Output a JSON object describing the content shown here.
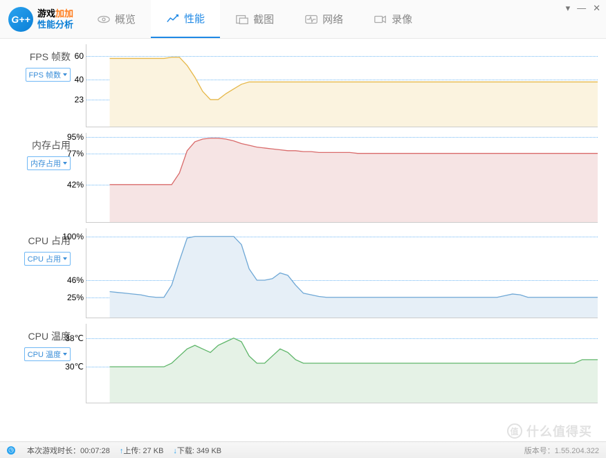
{
  "app": {
    "logo_badge": "G++",
    "title_line1_a": "游戏",
    "title_line1_b": "加加",
    "title_line2": "性能分析"
  },
  "tabs": [
    {
      "label": "概览",
      "icon": "eye"
    },
    {
      "label": "性能",
      "icon": "chart",
      "active": true
    },
    {
      "label": "截图",
      "icon": "screenshot"
    },
    {
      "label": "网络",
      "icon": "network"
    },
    {
      "label": "录像",
      "icon": "record"
    }
  ],
  "charts": [
    {
      "title": "FPS 帧数",
      "dropdown": "FPS 帧数",
      "type": "area",
      "height": 120,
      "stroke": "#e6b84a",
      "fill": "#fbf3df",
      "grid_color": "#6fb8f5",
      "ymin": 0,
      "ymax": 70,
      "yticks": [
        60,
        40,
        23
      ],
      "ytick_suffix": "",
      "data": [
        58,
        58,
        58,
        58,
        58,
        58,
        58,
        58,
        59,
        59,
        52,
        42,
        30,
        23,
        23,
        28,
        32,
        36,
        38,
        38,
        38,
        38,
        38,
        38,
        38,
        38,
        38,
        38,
        38,
        38,
        38,
        38,
        38,
        38,
        38,
        38,
        38,
        38,
        38,
        38,
        38,
        38,
        38,
        38,
        38,
        38,
        38,
        38,
        38,
        38,
        38,
        38,
        38,
        38,
        38,
        38,
        38,
        38,
        38,
        38,
        38,
        38,
        38,
        38
      ]
    },
    {
      "title": "内存占用",
      "dropdown": "内存占用",
      "type": "area",
      "height": 130,
      "stroke": "#d96b6b",
      "fill": "#f6e4e4",
      "grid_color": "#6fb8f5",
      "ymin": 0,
      "ymax": 100,
      "yticks": [
        95,
        77,
        42
      ],
      "ytick_suffix": "%",
      "data": [
        42,
        42,
        42,
        42,
        42,
        42,
        42,
        42,
        42,
        55,
        80,
        90,
        93,
        94,
        94,
        93,
        91,
        88,
        86,
        84,
        83,
        82,
        81,
        80,
        80,
        79,
        79,
        78,
        78,
        78,
        78,
        78,
        77,
        77,
        77,
        77,
        77,
        77,
        77,
        77,
        77,
        77,
        77,
        77,
        77,
        77,
        77,
        77,
        77,
        77,
        77,
        77,
        77,
        77,
        77,
        77,
        77,
        77,
        77,
        77,
        77,
        77,
        77,
        77
      ]
    },
    {
      "title": "CPU 占用",
      "dropdown": "CPU 占用",
      "type": "area",
      "height": 130,
      "stroke": "#6fa8d6",
      "fill": "#e6eff7",
      "grid_color": "#6fb8f5",
      "ymin": 0,
      "ymax": 110,
      "yticks": [
        100,
        46,
        25
      ],
      "ytick_suffix": "%",
      "data": [
        32,
        31,
        30,
        29,
        28,
        26,
        25,
        25,
        40,
        70,
        98,
        100,
        100,
        100,
        100,
        100,
        100,
        90,
        60,
        46,
        46,
        48,
        55,
        52,
        40,
        30,
        28,
        26,
        25,
        25,
        25,
        25,
        25,
        25,
        25,
        25,
        25,
        25,
        25,
        25,
        25,
        25,
        25,
        25,
        25,
        25,
        25,
        25,
        25,
        25,
        25,
        27,
        29,
        28,
        25,
        25,
        25,
        25,
        25,
        25,
        25,
        25,
        25,
        25
      ]
    },
    {
      "title": "CPU 温度",
      "dropdown": "CPU 温度",
      "type": "area",
      "height": 115,
      "stroke": "#5fb66a",
      "fill": "#e5f2e6",
      "grid_color": "#6fb8f5",
      "ymin": 20,
      "ymax": 42,
      "yticks": [
        38,
        30
      ],
      "ytick_suffix": "℃",
      "data": [
        30,
        30,
        30,
        30,
        30,
        30,
        30,
        30,
        31,
        33,
        35,
        36,
        35,
        34,
        36,
        37,
        38,
        37,
        33,
        31,
        31,
        33,
        35,
        34,
        32,
        31,
        31,
        31,
        31,
        31,
        31,
        31,
        31,
        31,
        31,
        31,
        31,
        31,
        31,
        31,
        31,
        31,
        31,
        31,
        31,
        31,
        31,
        31,
        31,
        31,
        31,
        31,
        31,
        31,
        31,
        31,
        31,
        31,
        31,
        31,
        31,
        32,
        32,
        32
      ]
    }
  ],
  "status": {
    "session_label": "本次游戏时长：",
    "session_value": "00:07:28",
    "upload_label": "上传:",
    "upload_value": "27 KB",
    "download_label": "下载:",
    "download_value": "349 KB",
    "version": "版本号：1.55.204.322"
  },
  "watermark": "什么值得买"
}
